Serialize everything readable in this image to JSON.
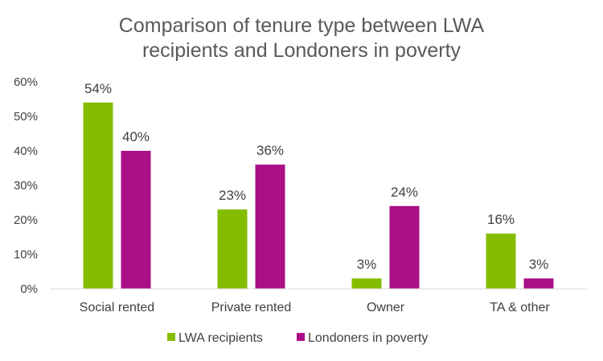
{
  "chart_data": {
    "type": "bar",
    "title_lines": [
      "Comparison of tenure type between LWA",
      "recipients and Londoners in poverty"
    ],
    "categories": [
      "Social rented",
      "Private rented",
      "Owner",
      "TA & other"
    ],
    "series": [
      {
        "name": "LWA recipients",
        "values": [
          54,
          23,
          3,
          16
        ],
        "labels": [
          "54%",
          "23%",
          "3%",
          "16%"
        ],
        "color": "#84BD00"
      },
      {
        "name": "Londoners in poverty",
        "values": [
          40,
          36,
          24,
          3
        ],
        "labels": [
          "40%",
          "36%",
          "24%",
          "3%"
        ],
        "color": "#AA0F86"
      }
    ],
    "ylim": [
      0,
      60
    ],
    "yticks": [
      "0%",
      "10%",
      "20%",
      "30%",
      "40%",
      "50%",
      "60%"
    ],
    "grid": false,
    "legend": "bottom",
    "axis_color": "#D9D9D9"
  }
}
